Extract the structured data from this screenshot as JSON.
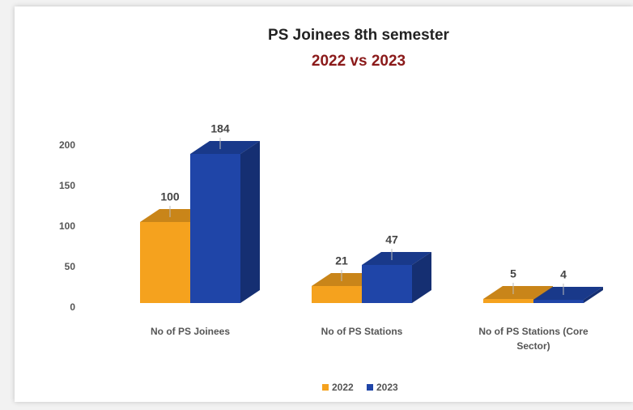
{
  "chart_data": {
    "type": "bar3d",
    "title": "PS Joinees 8th semester",
    "subtitle": "2022 vs 2023",
    "categories": [
      "No of  PS Joinees",
      "No of PS Stations",
      "No of  PS Stations (Core Sector)"
    ],
    "series": [
      {
        "name": "2022",
        "color": "#f5a21e",
        "values": [
          100,
          21,
          5
        ]
      },
      {
        "name": "2023",
        "color": "#1f45a8",
        "values": [
          184,
          47,
          4
        ]
      }
    ],
    "ylim": [
      0,
      200
    ],
    "yticks": [
      0,
      50,
      100,
      150,
      200
    ],
    "legend": "bottom"
  }
}
